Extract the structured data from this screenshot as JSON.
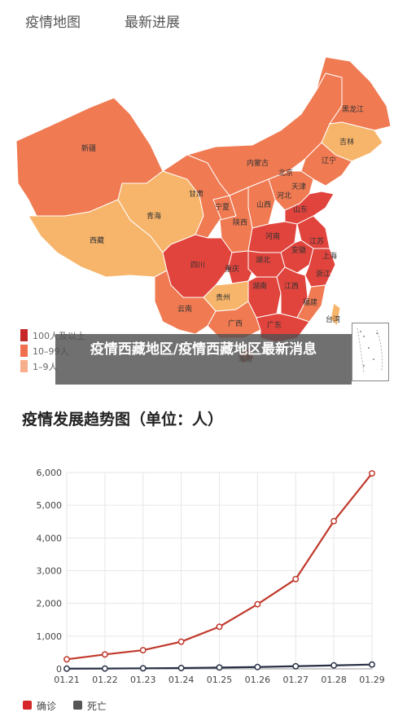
{
  "tabs": [
    {
      "label": "疫情地图"
    },
    {
      "label": "最新进展"
    }
  ],
  "map": {
    "provinces": [
      "黑龙江",
      "吉林",
      "辽宁",
      "内蒙古",
      "北京",
      "天津",
      "河北",
      "新疆",
      "甘肃",
      "宁夏",
      "山西",
      "山东",
      "青海",
      "陕西",
      "河南",
      "江苏",
      "安徽",
      "上海",
      "西藏",
      "四川",
      "重庆",
      "湖北",
      "浙江",
      "湖南",
      "江西",
      "贵州",
      "云南",
      "福建",
      "广西",
      "广东",
      "台湾",
      "海南"
    ],
    "legend": [
      {
        "label": "100人及以上",
        "color": "#c62828"
      },
      {
        "label": "10–99人",
        "color": "#ef6f4f"
      },
      {
        "label": "1–9人",
        "color": "#f6ae8d"
      }
    ],
    "colors": {
      "high": "#e0443c",
      "mid": "#f07a52",
      "low": "#f7b56b"
    }
  },
  "overlay_title": "疫情西藏地区/疫情西藏地区最新消息",
  "chart_heading": "疫情发展趋势图（单位：人）",
  "chart_data": {
    "type": "line",
    "x": [
      "01.21",
      "01.22",
      "01.23",
      "01.24",
      "01.25",
      "01.26",
      "01.27",
      "01.28",
      "01.29"
    ],
    "series": [
      {
        "name": "确诊",
        "color": "#c0392b",
        "values": [
          291,
          440,
          571,
          830,
          1287,
          1975,
          2744,
          4515,
          5974
        ]
      },
      {
        "name": "死亡",
        "color": "#283046",
        "values": [
          6,
          9,
          17,
          25,
          41,
          56,
          80,
          106,
          132
        ]
      }
    ],
    "yticks": [
      "0",
      "1,000",
      "2,000",
      "3,000",
      "4,000",
      "5,000",
      "6,000"
    ],
    "ylim": [
      0,
      6000
    ],
    "grid": true
  }
}
